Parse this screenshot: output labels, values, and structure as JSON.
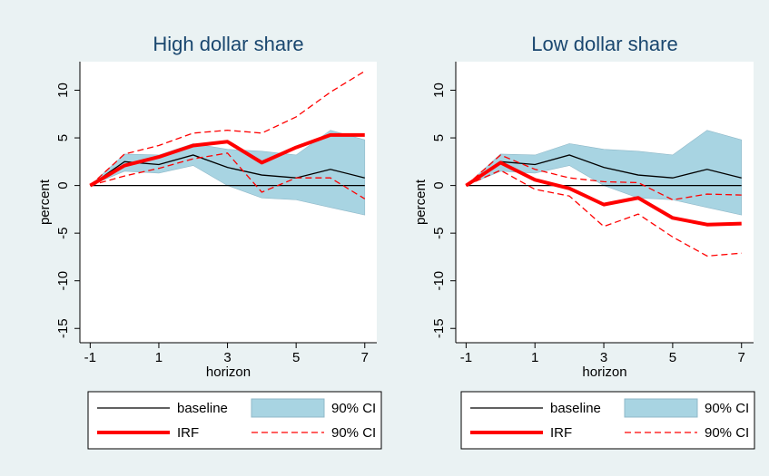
{
  "chart_data": [
    {
      "type": "line",
      "title": "High dollar share",
      "xlabel": "horizon",
      "ylabel": "percent",
      "x": [
        -1,
        0,
        1,
        2,
        3,
        4,
        5,
        6,
        7
      ],
      "xlim": [
        -1.3,
        7.35
      ],
      "xticks": [
        -1,
        1,
        3,
        5,
        7
      ],
      "ylim": [
        -16.5,
        13
      ],
      "yticks": [
        10,
        5,
        0,
        -5,
        -10,
        -15
      ],
      "hline": 0,
      "series": [
        {
          "name": "baseline",
          "kind": "line",
          "color": "#000000",
          "values": [
            0,
            2.5,
            2.2,
            3.2,
            1.9,
            1.1,
            0.8,
            1.7,
            0.8
          ]
        },
        {
          "name": "90% CI",
          "kind": "band",
          "color": "#a8d4e2",
          "upper": [
            0,
            3.3,
            3.2,
            4.4,
            3.8,
            3.6,
            3.2,
            5.8,
            4.8
          ],
          "lower": [
            0,
            1.5,
            1.3,
            2.1,
            0,
            -1.3,
            -1.5,
            -2.3,
            -3.1
          ]
        },
        {
          "name": "IRF",
          "kind": "thick",
          "color": "#ff0000",
          "values": [
            0,
            2.1,
            3.0,
            4.2,
            4.6,
            2.4,
            4.0,
            5.3,
            5.3
          ]
        },
        {
          "name": "90% CI",
          "kind": "dashed",
          "color": "#ff0000",
          "upper": [
            0,
            3.3,
            4.2,
            5.5,
            5.8,
            5.5,
            7.2,
            9.8,
            12.0
          ],
          "lower": [
            0,
            1.0,
            1.8,
            2.8,
            3.4,
            -0.7,
            0.8,
            0.8,
            -1.4
          ]
        }
      ]
    },
    {
      "type": "line",
      "title": "Low dollar share",
      "xlabel": "horizon",
      "ylabel": "percent",
      "x": [
        -1,
        0,
        1,
        2,
        3,
        4,
        5,
        6,
        7
      ],
      "xlim": [
        -1.3,
        7.35
      ],
      "xticks": [
        -1,
        1,
        3,
        5,
        7
      ],
      "ylim": [
        -16.5,
        13
      ],
      "yticks": [
        10,
        5,
        0,
        -5,
        -10,
        -15
      ],
      "hline": 0,
      "series": [
        {
          "name": "baseline",
          "kind": "line",
          "color": "#000000",
          "values": [
            0,
            2.5,
            2.2,
            3.2,
            1.9,
            1.1,
            0.8,
            1.7,
            0.8
          ]
        },
        {
          "name": "90% CI",
          "kind": "band",
          "color": "#a8d4e2",
          "upper": [
            0,
            3.3,
            3.2,
            4.4,
            3.8,
            3.6,
            3.2,
            5.8,
            4.8
          ],
          "lower": [
            0,
            1.5,
            1.3,
            2.1,
            0,
            -1.3,
            -1.5,
            -2.3,
            -3.1
          ]
        },
        {
          "name": "IRF",
          "kind": "thick",
          "color": "#ff0000",
          "values": [
            0,
            2.4,
            0.6,
            -0.3,
            -2.0,
            -1.3,
            -3.4,
            -4.1,
            -4.0
          ]
        },
        {
          "name": "90% CI",
          "kind": "dashed",
          "color": "#ff0000",
          "upper": [
            0,
            3.2,
            1.7,
            0.8,
            0.4,
            0.3,
            -1.5,
            -0.9,
            -1.0
          ],
          "lower": [
            0,
            1.6,
            -0.4,
            -1.1,
            -4.3,
            -3.0,
            -5.4,
            -7.4,
            -7.1
          ]
        }
      ]
    }
  ]
}
